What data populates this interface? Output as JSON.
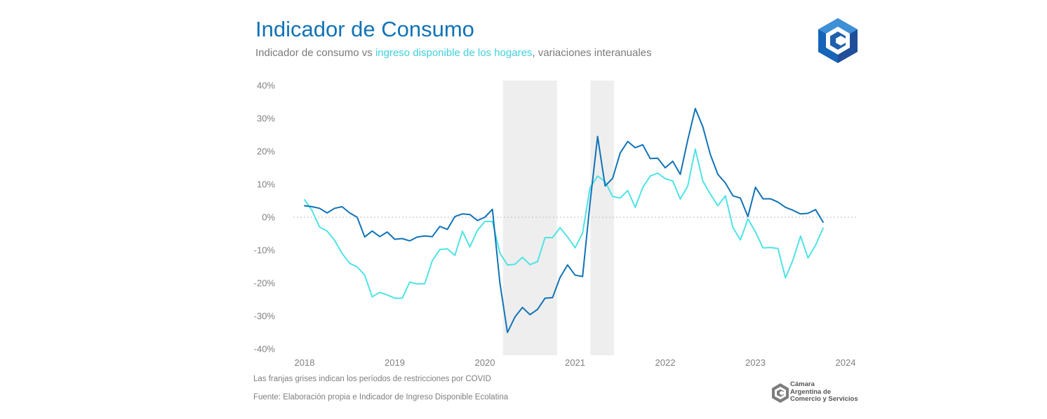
{
  "header": {
    "title": "Indicador de Consumo",
    "subtitle_prefix": "Indicador de consumo vs ",
    "subtitle_highlight": "ingreso disponible de los hogares",
    "subtitle_suffix": ", variaciones interanuales"
  },
  "footer": {
    "note": "Las franjas grises indican los períodos de restricciones por COVID",
    "source": "Fuente: Elaboración propia e Indicador de Ingreso Disponible Ecolatina"
  },
  "brand": {
    "line1": "Cámara",
    "line2": "Argentina de",
    "line3": "Comercio y Servicios"
  },
  "colors": {
    "consumo": "#1173b6",
    "ingreso": "#4fe3e6",
    "shade": "#eeeeee",
    "title": "#1173b6"
  },
  "chart_data": {
    "type": "line",
    "title": "Indicador de Consumo",
    "xlabel": "",
    "ylabel": "",
    "x_ticks": [
      "2018",
      "2019",
      "2020",
      "2021",
      "2022",
      "2023",
      "2024"
    ],
    "y_ticks": [
      "40%",
      "30%",
      "20%",
      "10%",
      "0%",
      "-10%",
      "-20%",
      "-30%",
      "-40%"
    ],
    "ylim": [
      -40,
      40
    ],
    "xlim": [
      2018.0,
      2024.0
    ],
    "grid": false,
    "zero_line": "dotted",
    "shaded_periods": [
      [
        2020.2,
        2020.8
      ],
      [
        2021.17,
        2021.43
      ]
    ],
    "x_start": 2018.0,
    "x_step_months": 1,
    "series": [
      {
        "name": "Indicador de consumo",
        "color": "#1173b6",
        "values": [
          3.5,
          3.2,
          2.7,
          1.3,
          2.7,
          3.2,
          1.3,
          0.0,
          -6.0,
          -4.2,
          -5.9,
          -4.5,
          -6.7,
          -6.5,
          -7.2,
          -6.0,
          -5.7,
          -5.9,
          -2.8,
          -3.7,
          0.2,
          1.0,
          0.8,
          -1.0,
          0.0,
          2.4,
          -20.0,
          -35.0,
          -30.3,
          -27.4,
          -29.6,
          -28.0,
          -24.6,
          -24.4,
          -18.3,
          -14.5,
          -17.6,
          -18.0,
          4.5,
          24.5,
          9.5,
          11.8,
          19.5,
          23.0,
          21.1,
          22.0,
          17.8,
          17.9,
          15.0,
          17.0,
          13.0,
          23.5,
          33.0,
          27.5,
          19.0,
          13.0,
          10.4,
          6.5,
          5.8,
          0.2,
          9.1,
          5.6,
          5.6,
          4.6,
          3.0,
          2.1,
          1.0,
          1.2,
          2.3,
          -1.5
        ]
      },
      {
        "name": "ingreso disponible de los hogares",
        "color": "#4fe3e6",
        "values": [
          5.3,
          2.0,
          -3.0,
          -4.2,
          -7.0,
          -11.0,
          -14.0,
          -15.1,
          -17.6,
          -24.2,
          -22.8,
          -23.6,
          -24.6,
          -24.6,
          -19.7,
          -20.3,
          -20.2,
          -13.2,
          -9.8,
          -9.6,
          -11.6,
          -4.3,
          -9.0,
          -4.0,
          -1.3,
          -1.3,
          -10.9,
          -14.5,
          -14.3,
          -12.2,
          -14.4,
          -13.5,
          -6.2,
          -6.2,
          -3.2,
          -6.0,
          -9.3,
          -4.8,
          9.0,
          12.5,
          10.8,
          6.3,
          5.8,
          8.1,
          3.0,
          9.0,
          12.5,
          13.4,
          11.7,
          11.0,
          5.5,
          9.5,
          20.7,
          11.0,
          7.0,
          3.5,
          6.5,
          -3.1,
          -6.9,
          -0.5,
          -4.4,
          -9.3,
          -9.2,
          -9.5,
          -18.4,
          -13.0,
          -5.7,
          -12.4,
          -8.5,
          -3.3
        ]
      }
    ]
  }
}
